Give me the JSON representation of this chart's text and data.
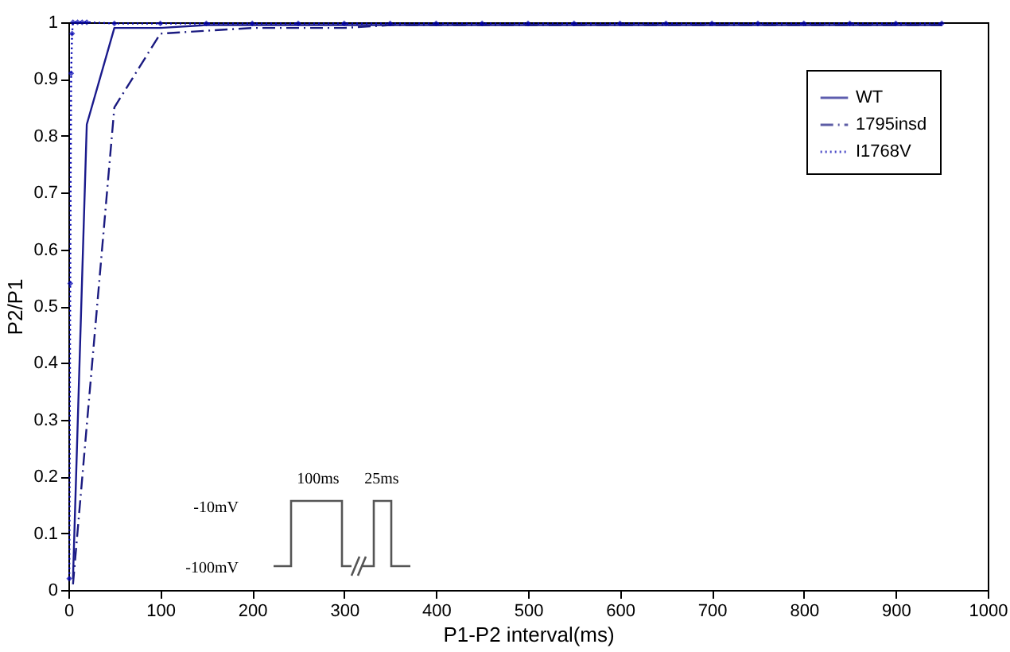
{
  "chart_data": {
    "type": "line",
    "xlabel": "P1-P2 interval(ms)",
    "ylabel": "P2/P1",
    "xlim": [
      0,
      1000
    ],
    "xticks": [
      0,
      100,
      200,
      300,
      400,
      500,
      600,
      700,
      800,
      900,
      1000
    ],
    "ylim": [
      0,
      1
    ],
    "yticks": [
      0,
      0.1,
      0.2,
      0.3,
      0.4,
      0.5,
      0.6,
      0.7,
      0.8,
      0.9,
      1
    ],
    "grid": false,
    "legend": "top right",
    "annotations": [
      "100ms",
      "25ms",
      "-10mV",
      "-100mV"
    ],
    "series": [
      {
        "name": "WT",
        "color": "#1a1a8c",
        "line_style": "solid",
        "marker": "none",
        "x": [
          5,
          20,
          50,
          100,
          150,
          200,
          250,
          300,
          350,
          400,
          450,
          500,
          550,
          600,
          650,
          700,
          750,
          800,
          850,
          900,
          950
        ],
        "values": [
          0.02,
          0.82,
          0.99,
          0.99,
          0.995,
          0.995,
          0.995,
          0.995,
          0.995,
          0.995,
          0.995,
          0.995,
          0.995,
          0.995,
          0.995,
          0.995,
          0.995,
          0.995,
          0.995,
          0.995,
          0.995
        ]
      },
      {
        "name": "1795insd",
        "color": "#1a1a80",
        "line_style": "dashdot",
        "marker": "none",
        "x": [
          5,
          50,
          100,
          150,
          200,
          250,
          300,
          350,
          400,
          450,
          500,
          550,
          600,
          650,
          700,
          750,
          800,
          850,
          900,
          950
        ],
        "values": [
          0.01,
          0.85,
          0.98,
          0.985,
          0.99,
          0.99,
          0.99,
          0.995,
          0.995,
          0.995,
          0.995,
          0.995,
          0.995,
          0.995,
          0.995,
          0.995,
          0.995,
          0.995,
          0.995,
          0.995
        ]
      },
      {
        "name": "I1768V",
        "color": "#0000b0",
        "line_style": "dotted",
        "marker": "diamond",
        "x": [
          1,
          2,
          3,
          4,
          5,
          10,
          15,
          20,
          50,
          100,
          150,
          200,
          250,
          300,
          350,
          400,
          450,
          500,
          550,
          600,
          650,
          700,
          750,
          800,
          850,
          900,
          950
        ],
        "values": [
          0.02,
          0.54,
          0.91,
          0.98,
          1,
          1,
          1,
          1,
          0.998,
          0.998,
          0.998,
          0.998,
          0.998,
          0.998,
          0.998,
          0.998,
          0.998,
          0.998,
          0.998,
          0.998,
          0.998,
          0.998,
          0.998,
          0.998,
          0.998,
          0.998,
          0.998
        ]
      }
    ]
  }
}
